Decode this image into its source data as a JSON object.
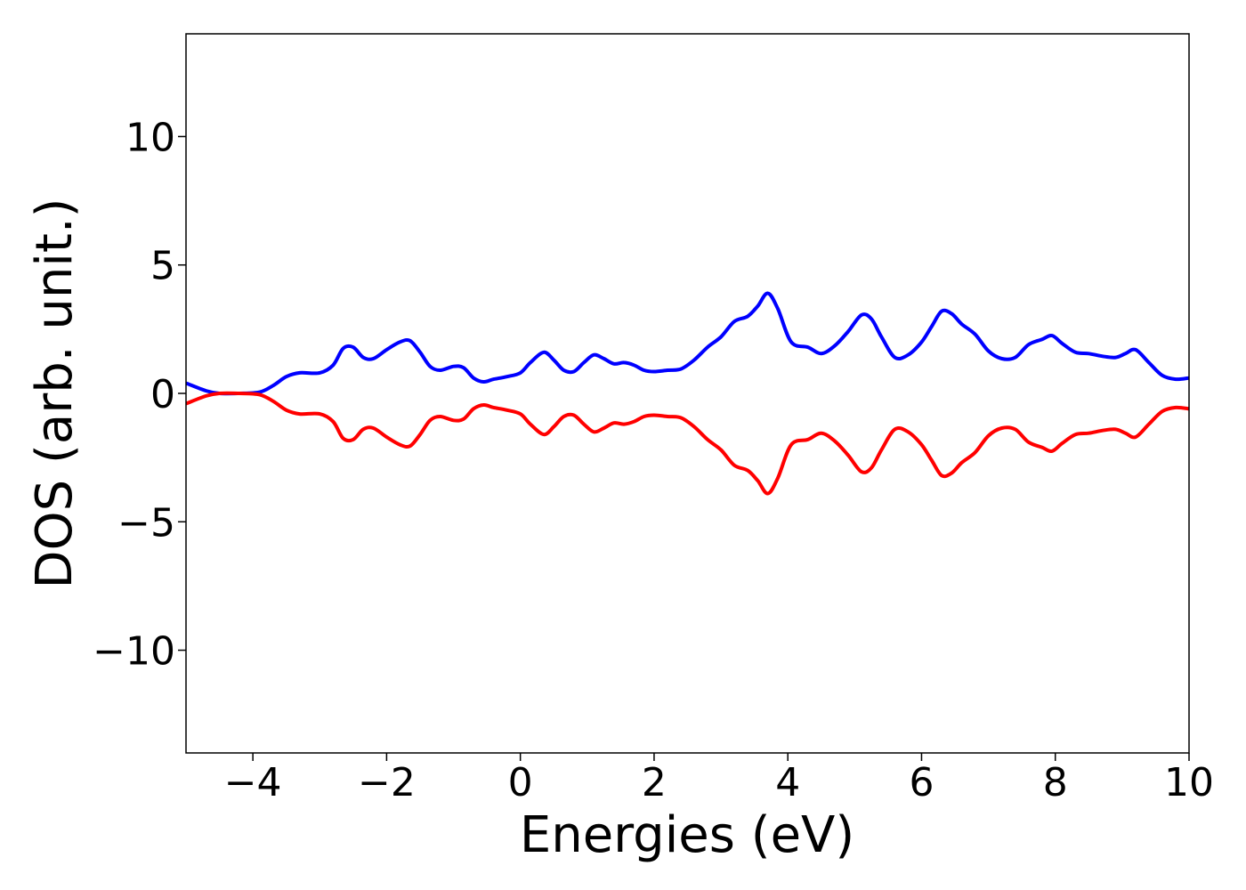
{
  "chart_data": {
    "type": "line",
    "title": "",
    "xlabel": "Energies (eV)",
    "ylabel": "DOS (arb. unit.)",
    "xlim": [
      -5,
      10
    ],
    "ylim": [
      -14,
      14
    ],
    "grid": false,
    "legend": "none",
    "xticks": [
      -4,
      -2,
      0,
      2,
      4,
      6,
      8,
      10
    ],
    "xtick_labels": [
      "−4",
      "−2",
      "0",
      "2",
      "4",
      "6",
      "8",
      "10"
    ],
    "yticks": [
      -10,
      -5,
      0,
      5,
      10
    ],
    "ytick_labels": [
      "−10",
      "−5",
      "0",
      "5",
      "10"
    ],
    "series": [
      {
        "color": "#0000ff",
        "x": [
          -5.0,
          -4.7,
          -4.5,
          -4.2,
          -3.9,
          -3.7,
          -3.5,
          -3.3,
          -3.0,
          -2.8,
          -2.65,
          -2.5,
          -2.35,
          -2.2,
          -2.0,
          -1.8,
          -1.65,
          -1.5,
          -1.35,
          -1.2,
          -1.0,
          -0.85,
          -0.7,
          -0.55,
          -0.4,
          -0.2,
          0.0,
          0.15,
          0.35,
          0.5,
          0.65,
          0.8,
          0.95,
          1.1,
          1.25,
          1.4,
          1.55,
          1.7,
          1.85,
          2.0,
          2.2,
          2.4,
          2.6,
          2.8,
          3.0,
          3.2,
          3.4,
          3.55,
          3.7,
          3.85,
          4.05,
          4.3,
          4.5,
          4.7,
          4.9,
          5.1,
          5.25,
          5.4,
          5.6,
          5.8,
          6.0,
          6.15,
          6.3,
          6.45,
          6.6,
          6.8,
          7.0,
          7.2,
          7.4,
          7.6,
          7.8,
          7.95,
          8.1,
          8.3,
          8.5,
          8.7,
          8.9,
          9.05,
          9.2,
          9.4,
          9.6,
          9.8,
          10.0
        ],
        "y": [
          0.4,
          0.1,
          0.0,
          0.0,
          0.05,
          0.3,
          0.65,
          0.8,
          0.8,
          1.1,
          1.75,
          1.8,
          1.4,
          1.35,
          1.7,
          2.0,
          2.05,
          1.6,
          1.05,
          0.9,
          1.05,
          1.0,
          0.6,
          0.45,
          0.55,
          0.65,
          0.8,
          1.2,
          1.6,
          1.3,
          0.9,
          0.85,
          1.2,
          1.5,
          1.35,
          1.15,
          1.2,
          1.1,
          0.9,
          0.85,
          0.9,
          0.95,
          1.3,
          1.8,
          2.2,
          2.8,
          3.0,
          3.4,
          3.9,
          3.3,
          2.0,
          1.8,
          1.55,
          1.85,
          2.4,
          3.05,
          2.9,
          2.2,
          1.4,
          1.5,
          2.0,
          2.6,
          3.2,
          3.1,
          2.7,
          2.3,
          1.65,
          1.35,
          1.4,
          1.9,
          2.1,
          2.25,
          1.95,
          1.6,
          1.55,
          1.45,
          1.4,
          1.55,
          1.7,
          1.2,
          0.7,
          0.55,
          0.6
        ]
      },
      {
        "color": "#ff0000",
        "x": [
          -5.0,
          -4.7,
          -4.5,
          -4.2,
          -3.9,
          -3.7,
          -3.5,
          -3.3,
          -3.0,
          -2.8,
          -2.65,
          -2.5,
          -2.35,
          -2.2,
          -2.0,
          -1.8,
          -1.65,
          -1.5,
          -1.35,
          -1.2,
          -1.0,
          -0.85,
          -0.7,
          -0.55,
          -0.4,
          -0.2,
          0.0,
          0.15,
          0.35,
          0.5,
          0.65,
          0.8,
          0.95,
          1.1,
          1.25,
          1.4,
          1.55,
          1.7,
          1.85,
          2.0,
          2.2,
          2.4,
          2.6,
          2.8,
          3.0,
          3.2,
          3.4,
          3.55,
          3.7,
          3.85,
          4.05,
          4.3,
          4.5,
          4.7,
          4.9,
          5.1,
          5.25,
          5.4,
          5.6,
          5.8,
          6.0,
          6.15,
          6.3,
          6.45,
          6.6,
          6.8,
          7.0,
          7.2,
          7.4,
          7.6,
          7.8,
          7.95,
          8.1,
          8.3,
          8.5,
          8.7,
          8.9,
          9.05,
          9.2,
          9.4,
          9.6,
          9.8,
          10.0
        ],
        "y": [
          -0.4,
          -0.1,
          0.0,
          0.0,
          -0.05,
          -0.3,
          -0.65,
          -0.8,
          -0.8,
          -1.1,
          -1.75,
          -1.8,
          -1.4,
          -1.35,
          -1.7,
          -2.0,
          -2.05,
          -1.6,
          -1.05,
          -0.9,
          -1.05,
          -1.0,
          -0.6,
          -0.45,
          -0.55,
          -0.65,
          -0.8,
          -1.2,
          -1.6,
          -1.3,
          -0.9,
          -0.85,
          -1.2,
          -1.5,
          -1.35,
          -1.15,
          -1.2,
          -1.1,
          -0.9,
          -0.85,
          -0.9,
          -0.95,
          -1.3,
          -1.8,
          -2.2,
          -2.8,
          -3.0,
          -3.4,
          -3.9,
          -3.3,
          -2.0,
          -1.8,
          -1.55,
          -1.85,
          -2.4,
          -3.05,
          -2.9,
          -2.2,
          -1.4,
          -1.5,
          -2.0,
          -2.6,
          -3.2,
          -3.1,
          -2.7,
          -2.3,
          -1.65,
          -1.35,
          -1.4,
          -1.9,
          -2.1,
          -2.25,
          -1.95,
          -1.6,
          -1.55,
          -1.45,
          -1.4,
          -1.55,
          -1.7,
          -1.2,
          -0.7,
          -0.55,
          -0.6
        ]
      }
    ]
  }
}
